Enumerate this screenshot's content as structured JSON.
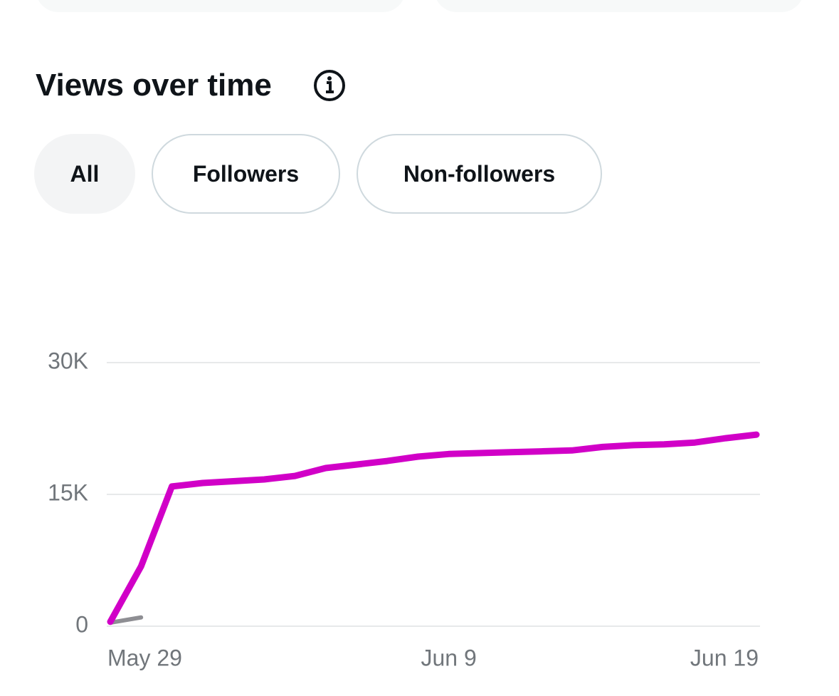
{
  "header": {
    "title": "Views over time"
  },
  "filters": [
    "All",
    "Followers",
    "Non-followers"
  ],
  "chart_data": {
    "type": "line",
    "categories": [
      "May 29",
      null,
      null,
      null,
      null,
      null,
      null,
      null,
      null,
      null,
      null,
      "Jun 9",
      null,
      null,
      null,
      null,
      null,
      null,
      null,
      null,
      null,
      "Jun 19"
    ],
    "series": [
      {
        "color": "#d100c7",
        "values": [
          500,
          6800,
          15900,
          16300,
          16500,
          16700,
          17100,
          18000,
          18400,
          18800,
          19300,
          19600,
          19700,
          19800,
          19900,
          20000,
          20400,
          20600,
          20700,
          20900,
          21400,
          21800
        ]
      },
      {
        "color": "#8e8e93",
        "values": [
          400,
          1000,
          null,
          null,
          null,
          null,
          null,
          null,
          null,
          null,
          null,
          null,
          null,
          null,
          null,
          null,
          null,
          null,
          null,
          null,
          null,
          null
        ]
      }
    ],
    "ylim": [
      0,
      30000
    ],
    "yticks": [
      0,
      {
        "value": 15000,
        "label": "15K"
      },
      {
        "value": 30000,
        "label": "30K"
      }
    ],
    "grid": true
  }
}
